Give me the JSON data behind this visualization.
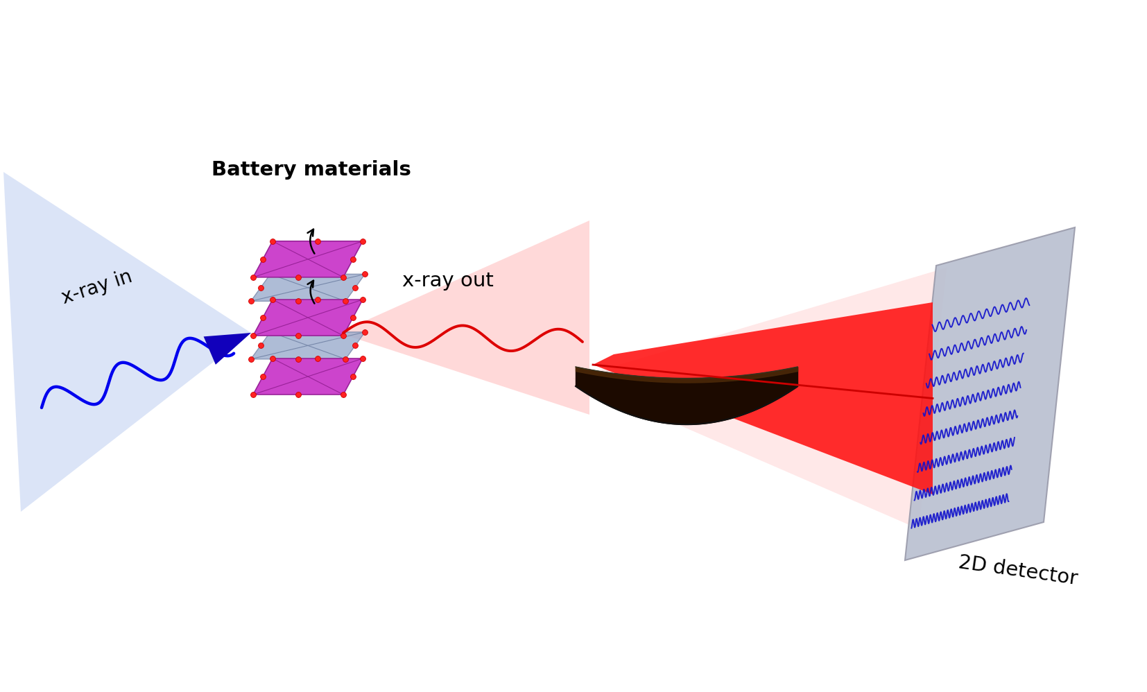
{
  "bg_color": "#ffffff",
  "fig_width": 16.54,
  "fig_height": 9.98,
  "dpi": 100,
  "xray_in_label": "x-ray in",
  "xray_out_label": "x-ray out",
  "battery_label": "Battery materials",
  "detector_label": "2D detector",
  "beam_in_color": "#0000ee",
  "beam_in_cone_color": "#d0dcf5",
  "beam_out_color": "#dd0000",
  "detector_bg": "#b8bfd0",
  "spectrum_color": "#1111cc",
  "crystal_purple": "#cc44cc",
  "crystal_purple_edge": "#992299",
  "crystal_gray": "#9aabcc",
  "crystal_gray_edge": "#7788aa",
  "oxygen_color": "#ff2222",
  "analyzer_dark": "#1c0a00",
  "analyzer_mid": "#4a2808",
  "red_beam_bright": "#ff1111",
  "red_beam_light": "#ffaaaa"
}
